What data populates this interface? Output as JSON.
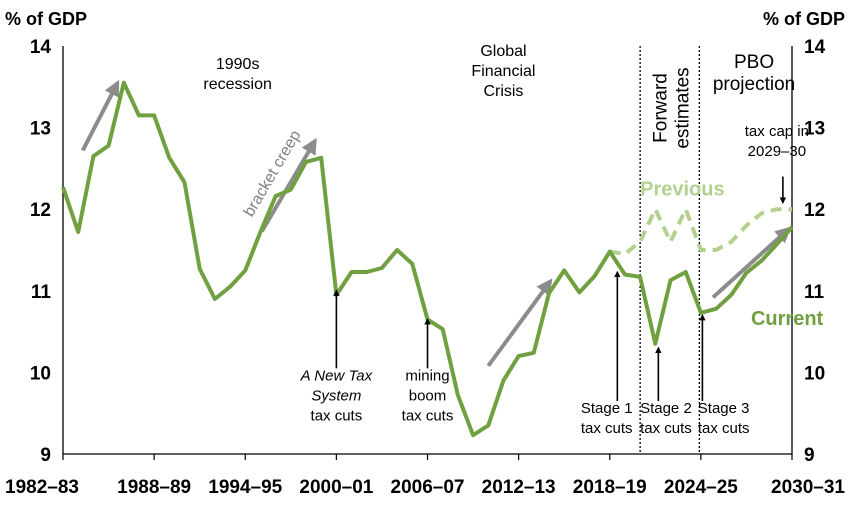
{
  "chart_data": {
    "type": "line",
    "title": "",
    "ylabel_left": "% of GDP",
    "ylabel_right": "% of GDP",
    "ylim": [
      9,
      14
    ],
    "yticks": [
      9,
      10,
      11,
      12,
      13,
      14
    ],
    "xticks": [
      "1982–83",
      "1988–89",
      "1994–95",
      "2000–01",
      "2006–07",
      "2012–13",
      "2018–19",
      "2024–25",
      "2030–31"
    ],
    "grid": false,
    "colors": {
      "current": "#70a040",
      "previous": "#b3d08e",
      "arrow_trend": "#8c8c8c",
      "annotation": "#000000",
      "period_divider": "#000000"
    },
    "x_start_year": 1982,
    "series": [
      {
        "name": "Current",
        "values": [
          [
            1982,
            12.27
          ],
          [
            1983,
            11.72
          ],
          [
            1984,
            12.65
          ],
          [
            1985,
            12.78
          ],
          [
            1986,
            13.55
          ],
          [
            1987,
            13.15
          ],
          [
            1988,
            13.15
          ],
          [
            1989,
            12.63
          ],
          [
            1990,
            12.33
          ],
          [
            1991,
            11.27
          ],
          [
            1992,
            10.9
          ],
          [
            1993,
            11.05
          ],
          [
            1994,
            11.25
          ],
          [
            1995,
            11.72
          ],
          [
            1996,
            12.16
          ],
          [
            1997,
            12.24
          ],
          [
            1998,
            12.58
          ],
          [
            1999,
            12.63
          ],
          [
            2000,
            10.95
          ],
          [
            2001,
            11.23
          ],
          [
            2002,
            11.23
          ],
          [
            2003,
            11.28
          ],
          [
            2004,
            11.5
          ],
          [
            2005,
            11.33
          ],
          [
            2006,
            10.65
          ],
          [
            2007,
            10.53
          ],
          [
            2008,
            9.72
          ],
          [
            2009,
            9.23
          ],
          [
            2010,
            9.35
          ],
          [
            2011,
            9.9
          ],
          [
            2012,
            10.2
          ],
          [
            2013,
            10.24
          ],
          [
            2014,
            10.97
          ],
          [
            2015,
            11.25
          ],
          [
            2016,
            10.98
          ],
          [
            2017,
            11.18
          ],
          [
            2018,
            11.48
          ],
          [
            2019,
            11.2
          ],
          [
            2020,
            11.17
          ],
          [
            2021,
            10.35
          ],
          [
            2022,
            11.13
          ],
          [
            2023,
            11.23
          ],
          [
            2024,
            10.73
          ],
          [
            2025,
            10.78
          ],
          [
            2026,
            10.95
          ],
          [
            2027,
            11.22
          ],
          [
            2028,
            11.37
          ],
          [
            2029,
            11.57
          ],
          [
            2030,
            11.78
          ]
        ]
      },
      {
        "name": "Previous",
        "values": [
          [
            2018,
            11.48
          ],
          [
            2019,
            11.45
          ],
          [
            2020,
            11.6
          ],
          [
            2021,
            12.0
          ],
          [
            2022,
            11.6
          ],
          [
            2023,
            12.0
          ],
          [
            2024,
            11.5
          ],
          [
            2025,
            11.5
          ],
          [
            2026,
            11.6
          ],
          [
            2027,
            11.8
          ],
          [
            2028,
            11.95
          ],
          [
            2029,
            12.0
          ],
          [
            2030,
            12.0
          ]
        ]
      }
    ],
    "period_dividers": [
      2020.0,
      2023.9
    ],
    "period_labels": [
      {
        "lines": [
          "Forward",
          "estimates"
        ],
        "rotated": true,
        "at": 2022.0,
        "size": 19
      },
      {
        "lines": [
          "PBO",
          "projection"
        ],
        "rotated": false,
        "at": 2027.5,
        "size": 19
      }
    ],
    "series_labels": [
      {
        "text": "Previous",
        "series": "previous",
        "x": 2020.0,
        "y": 12.17
      },
      {
        "text": "Current",
        "series": "current",
        "x": 2027.3,
        "y": 10.58
      }
    ],
    "event_labels": [
      {
        "lines": [
          "1990s",
          "recession"
        ],
        "x": 1993.5,
        "y": 13.72
      },
      {
        "lines": [
          "Global",
          "Financial",
          "Crisis"
        ],
        "x": 2011.0,
        "y": 13.88
      }
    ],
    "trend_arrows": [
      {
        "label": "",
        "from": [
          1983.3,
          12.72
        ],
        "to": [
          1985.6,
          13.55
        ]
      },
      {
        "label": "bracket creep",
        "from": [
          1995.1,
          11.73
        ],
        "to": [
          1998.6,
          12.84
        ]
      },
      {
        "label": "",
        "from": [
          2010.0,
          10.08
        ],
        "to": [
          2014.1,
          11.12
        ]
      },
      {
        "label": "",
        "from": [
          2024.8,
          10.92
        ],
        "to": [
          2029.8,
          11.76
        ]
      }
    ],
    "policy_annotations": [
      {
        "lines": [
          "A New Tax",
          "System",
          "tax cuts"
        ],
        "italic_lines": 2,
        "arrow_x": 2000.0,
        "arrow_top": 11.0,
        "arrow_bottom": 10.05,
        "text_y": 9.9
      },
      {
        "lines": [
          "mining",
          "boom",
          "tax cuts"
        ],
        "italic_lines": 0,
        "arrow_x": 2006.0,
        "arrow_top": 10.65,
        "arrow_bottom": 10.05,
        "text_y": 9.9
      },
      {
        "lines": [
          "Stage 1",
          "tax cuts"
        ],
        "italic_lines": 0,
        "arrow_x": 2018.5,
        "arrow_top": 11.23,
        "arrow_bottom": 9.65,
        "text_y": 9.5,
        "text_x": 2017.8
      },
      {
        "lines": [
          "Stage 2",
          "tax cuts"
        ],
        "italic_lines": 0,
        "arrow_x": 2021.2,
        "arrow_top": 10.3,
        "arrow_bottom": 9.65,
        "text_y": 9.5,
        "text_x": 2021.7
      },
      {
        "lines": [
          "Stage 3",
          "tax cuts"
        ],
        "italic_lines": 0,
        "arrow_x": 2024.1,
        "arrow_top": 10.7,
        "arrow_bottom": 9.65,
        "text_y": 9.5,
        "text_x": 2025.5
      }
    ],
    "cap_annotation": {
      "lines": [
        "tax cap in",
        "2029–30"
      ],
      "arrow_x": 2029.4,
      "arrow_top": 12.4,
      "arrow_bottom": 12.08,
      "text_y": 12.9
    }
  }
}
